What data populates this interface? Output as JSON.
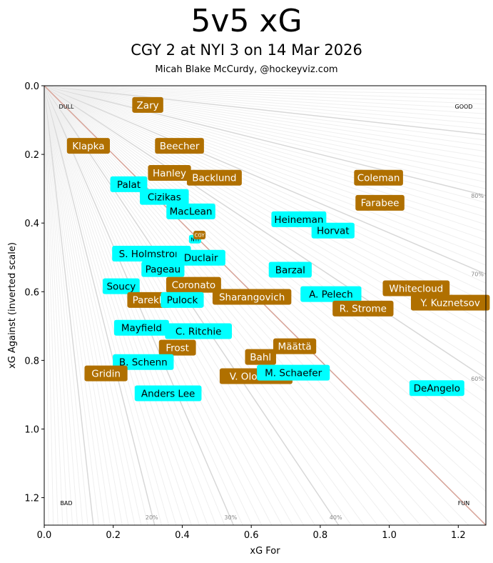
{
  "chart_data": {
    "type": "scatter",
    "title": "5v5 xG",
    "subtitle": "CGY 2 at NYI 3 on 14 Mar 2026",
    "credit": "Micah Blake McCurdy, @hockeyviz.com",
    "xlabel": "xG For",
    "ylabel": "xG Against (inverted scale)",
    "xlim": [
      0,
      1.28
    ],
    "ylim": [
      0,
      1.28
    ],
    "y_inverted": true,
    "xticks": [
      "0.0",
      "0.2",
      "0.4",
      "0.6",
      "0.8",
      "1.0",
      "1.2"
    ],
    "yticks": [
      "0.0",
      "0.2",
      "0.4",
      "0.6",
      "0.8",
      "1.0",
      "1.2"
    ],
    "corner_labels": {
      "top_left": "DULL",
      "top_right": "GOOD",
      "bottom_left": "BAD",
      "bottom_right": "FUN"
    },
    "pct_labels_right": [
      "80%",
      "70%",
      "60%"
    ],
    "pct_labels_bottom": [
      "20%",
      "30%",
      "40%"
    ],
    "team_colors": {
      "CGY": "#b07000",
      "NYI": "#00ffff"
    },
    "diagonal_color": "#d9a59a",
    "points": [
      {
        "name": "Zary",
        "team": "CGY",
        "x": 0.3,
        "y": 0.056
      },
      {
        "name": "Klapka",
        "team": "CGY",
        "x": 0.128,
        "y": 0.175
      },
      {
        "name": "Beecher",
        "team": "CGY",
        "x": 0.392,
        "y": 0.175
      },
      {
        "name": "Hanley",
        "team": "CGY",
        "x": 0.363,
        "y": 0.254
      },
      {
        "name": "Backlund",
        "team": "CGY",
        "x": 0.493,
        "y": 0.268
      },
      {
        "name": "Palat",
        "team": "NYI",
        "x": 0.245,
        "y": 0.287
      },
      {
        "name": "Cizikas",
        "team": "NYI",
        "x": 0.348,
        "y": 0.324
      },
      {
        "name": "MacLean",
        "team": "NYI",
        "x": 0.425,
        "y": 0.366
      },
      {
        "name": "Coleman",
        "team": "CGY",
        "x": 0.969,
        "y": 0.268
      },
      {
        "name": "Farabee",
        "team": "CGY",
        "x": 0.973,
        "y": 0.341
      },
      {
        "name": "Heineman",
        "team": "NYI",
        "x": 0.738,
        "y": 0.389
      },
      {
        "name": "Horvat",
        "team": "NYI",
        "x": 0.837,
        "y": 0.422
      },
      {
        "name": "NYI",
        "team": "NYI",
        "x": 0.437,
        "y": 0.447,
        "small": true
      },
      {
        "name": "CGY",
        "team": "CGY",
        "x": 0.45,
        "y": 0.435,
        "small": true
      },
      {
        "name": "S. Holmstrom",
        "team": "NYI",
        "x": 0.311,
        "y": 0.489
      },
      {
        "name": "Duclair",
        "team": "NYI",
        "x": 0.454,
        "y": 0.501
      },
      {
        "name": "Pageau",
        "team": "NYI",
        "x": 0.344,
        "y": 0.534
      },
      {
        "name": "Barzal",
        "team": "NYI",
        "x": 0.713,
        "y": 0.536
      },
      {
        "name": "Soucy",
        "team": "NYI",
        "x": 0.223,
        "y": 0.584
      },
      {
        "name": "Coronato",
        "team": "CGY",
        "x": 0.433,
        "y": 0.58
      },
      {
        "name": "Parekh",
        "team": "CGY",
        "x": 0.303,
        "y": 0.624
      },
      {
        "name": "Pulock",
        "team": "NYI",
        "x": 0.4,
        "y": 0.624
      },
      {
        "name": "Sharangovich",
        "team": "CGY",
        "x": 0.602,
        "y": 0.615
      },
      {
        "name": "A. Pelech",
        "team": "NYI",
        "x": 0.831,
        "y": 0.607
      },
      {
        "name": "Whitecloud",
        "team": "CGY",
        "x": 1.078,
        "y": 0.59
      },
      {
        "name": "R. Strome",
        "team": "CGY",
        "x": 0.924,
        "y": 0.649
      },
      {
        "name": "Y. Kuznetsov",
        "team": "CGY",
        "x": 1.177,
        "y": 0.632
      },
      {
        "name": "Mayfield",
        "team": "NYI",
        "x": 0.282,
        "y": 0.705
      },
      {
        "name": "C. Ritchie",
        "team": "NYI",
        "x": 0.447,
        "y": 0.715
      },
      {
        "name": "Frost",
        "team": "CGY",
        "x": 0.386,
        "y": 0.763
      },
      {
        "name": "Määttä",
        "team": "CGY",
        "x": 0.726,
        "y": 0.759
      },
      {
        "name": "Bahl",
        "team": "CGY",
        "x": 0.627,
        "y": 0.79
      },
      {
        "name": "B. Schenn",
        "team": "NYI",
        "x": 0.287,
        "y": 0.805
      },
      {
        "name": "Gridin",
        "team": "CGY",
        "x": 0.179,
        "y": 0.838
      },
      {
        "name": "V. Olofsson",
        "team": "CGY",
        "x": 0.614,
        "y": 0.846
      },
      {
        "name": "M. Schaefer",
        "team": "NYI",
        "x": 0.722,
        "y": 0.836
      },
      {
        "name": "DeAngelo",
        "team": "NYI",
        "x": 1.138,
        "y": 0.881
      },
      {
        "name": "Anders Lee",
        "team": "NYI",
        "x": 0.359,
        "y": 0.896
      }
    ]
  }
}
